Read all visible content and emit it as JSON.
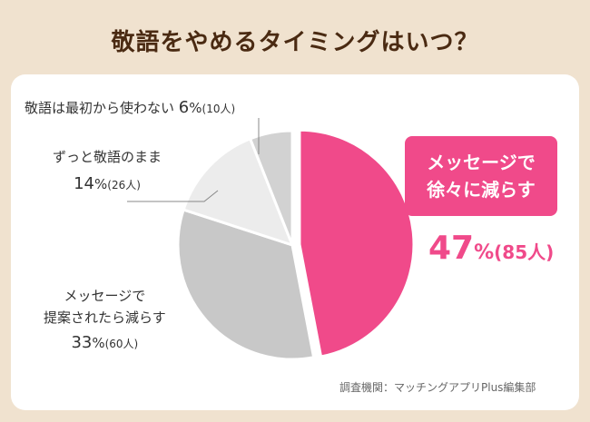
{
  "title": "敬語をやめるタイミングはいつ？",
  "labels": {
    "never_quit_prefix": "敬語は最初から使わない",
    "never_quit_pct": "6",
    "never_quit_count": "(10人)",
    "keep_line": "ずっと敬語のまま",
    "keep_pct": "14",
    "keep_count": "(26人)",
    "suggest_line1": "メッセージで",
    "suggest_line2": "提案されたら減らす",
    "suggest_pct": "33",
    "suggest_count": "(60人)",
    "gradual_line1": "メッセージで",
    "gradual_line2": "徐々に減らす",
    "gradual_pct": "47",
    "gradual_count": "(85人)",
    "percent_sign": "%"
  },
  "source": "調査機関：マッチングアプリPlus編集部",
  "colors": {
    "background": "#f0e2cf",
    "title": "#4a2a12",
    "highlight": "#f04a8a",
    "gray_dark": "#c8c8c8",
    "gray_mid": "#d2d2d2",
    "gray_light": "#ececec"
  },
  "chart_data": {
    "type": "pie",
    "categories": [
      "メッセージで徐々に減らす",
      "メッセージで提案されたら減らす",
      "ずっと敬語のまま",
      "敬語は最初から使わない"
    ],
    "values": [
      47,
      33,
      14,
      6
    ],
    "counts": [
      85,
      60,
      26,
      10
    ],
    "unit": "%",
    "highlight_slice": 0
  }
}
